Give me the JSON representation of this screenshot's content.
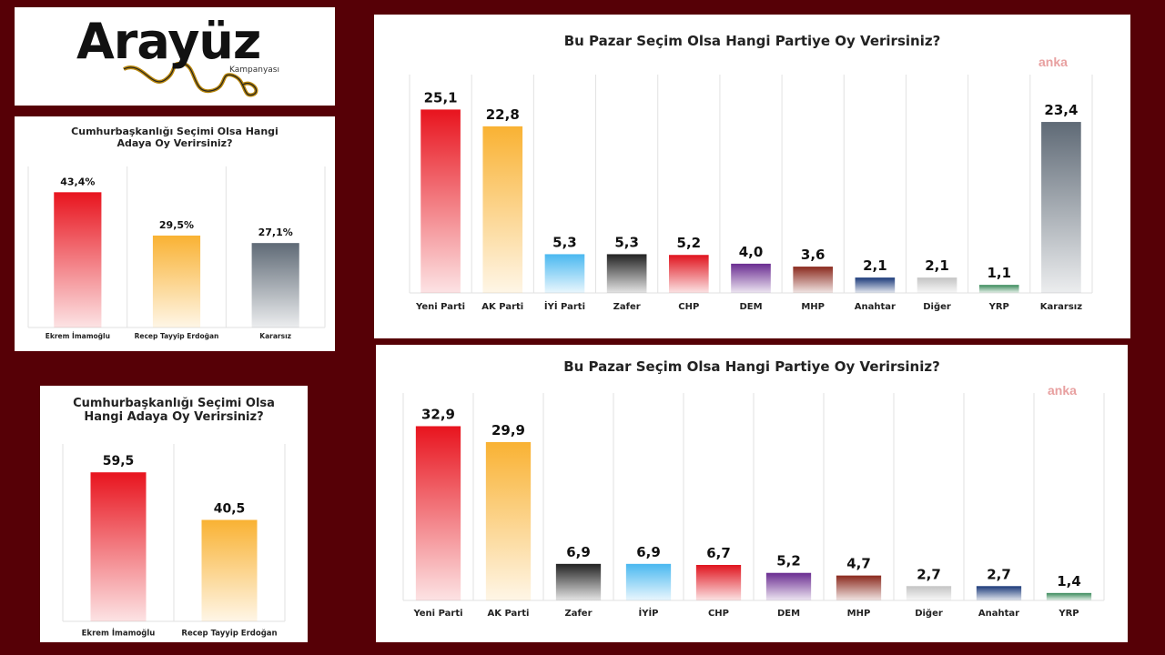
{
  "logo": {
    "title": "Arayüz",
    "subtitle": "Kampanyası"
  },
  "chart_data": [
    {
      "type": "bar",
      "title": "Cumhurbaşkanlığı Seçimi Olsa Hangi Adaya Oy Verirsiniz?",
      "categories": [
        "Ekrem İmamoğlu",
        "Recep Tayyip Erdoğan",
        "Kararsız"
      ],
      "values": [
        43.4,
        29.5,
        27.1
      ],
      "value_labels": [
        "43,4%",
        "29,5%",
        "27,1%"
      ],
      "colors": [
        "#e8141e",
        "#f9b233",
        "#5f6a76"
      ]
    },
    {
      "type": "bar",
      "title": "Cumhurbaşkanlığı Seçimi Olsa Hangi Adaya Oy Verirsiniz?",
      "categories": [
        "Ekrem İmamoğlu",
        "Recep Tayyip Erdoğan"
      ],
      "values": [
        59.5,
        40.5
      ],
      "value_labels": [
        "59,5",
        "40,5"
      ],
      "colors": [
        "#e8141e",
        "#f9b233"
      ]
    },
    {
      "type": "bar",
      "title": "Bu Pazar Seçim Olsa Hangi Partiye Oy Verirsiniz?",
      "watermark": "anka",
      "categories": [
        "Yeni Parti",
        "AK Parti",
        "İYİ Parti",
        "Zafer",
        "CHP",
        "DEM",
        "MHP",
        "Anahtar",
        "Diğer",
        "YRP",
        "Kararsız"
      ],
      "values": [
        25.1,
        22.8,
        5.3,
        5.3,
        5.2,
        4.0,
        3.6,
        2.1,
        2.1,
        1.1,
        23.4
      ],
      "value_labels": [
        "25,1",
        "22,8",
        "5,3",
        "5,3",
        "5,2",
        "4,0",
        "3,6",
        "2,1",
        "2,1",
        "1,1",
        "23,4"
      ],
      "colors": [
        "#e8141e",
        "#f9b233",
        "#4ab8f0",
        "#222222",
        "#e0141e",
        "#6a2c91",
        "#8b2a1e",
        "#1b3a7a",
        "#c4c4c4",
        "#3a8a5a",
        "#5f6a76"
      ]
    },
    {
      "type": "bar",
      "title": "Bu Pazar Seçim Olsa Hangi Partiye Oy Verirsiniz?",
      "watermark": "anka",
      "categories": [
        "Yeni Parti",
        "AK Parti",
        "Zafer",
        "İYİP",
        "CHP",
        "DEM",
        "MHP",
        "Diğer",
        "Anahtar",
        "YRP"
      ],
      "values": [
        32.9,
        29.9,
        6.9,
        6.9,
        6.7,
        5.2,
        4.7,
        2.7,
        2.7,
        1.4
      ],
      "value_labels": [
        "32,9",
        "29,9",
        "6,9",
        "6,9",
        "6,7",
        "5,2",
        "4,7",
        "2,7",
        "2,7",
        "1,4"
      ],
      "colors": [
        "#e8141e",
        "#f9b233",
        "#222222",
        "#4ab8f0",
        "#e0141e",
        "#6a2c91",
        "#8b2a1e",
        "#c4c4c4",
        "#1b3a7a",
        "#3a8a5a"
      ]
    }
  ]
}
